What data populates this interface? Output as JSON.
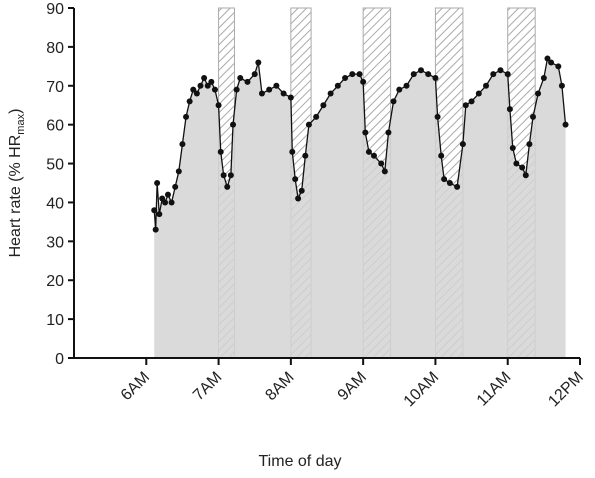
{
  "chart_data": {
    "type": "line",
    "xlabel": "Time of day",
    "ylabel": [
      "Heart rate (% HR",
      "max",
      ")"
    ],
    "xlim": [
      5,
      12
    ],
    "xticks": [
      {
        "value": 6,
        "label": "6AM"
      },
      {
        "value": 7,
        "label": "7AM"
      },
      {
        "value": 8,
        "label": "8AM"
      },
      {
        "value": 9,
        "label": "9AM"
      },
      {
        "value": 10,
        "label": "10AM"
      },
      {
        "value": 11,
        "label": "11AM"
      },
      {
        "value": 12,
        "label": "12PM"
      }
    ],
    "ylim": [
      0,
      90
    ],
    "yticks": [
      0,
      10,
      20,
      30,
      40,
      50,
      60,
      70,
      80,
      90
    ],
    "rest_periods": [
      [
        7,
        7.22
      ],
      [
        8,
        8.28
      ],
      [
        9,
        9.38
      ],
      [
        10,
        10.38
      ],
      [
        11,
        11.38
      ]
    ],
    "color": "#111111",
    "area_color": "#d3d3d3",
    "x": [
      6.11,
      6.13,
      6.15,
      6.18,
      6.22,
      6.26,
      6.3,
      6.35,
      6.4,
      6.45,
      6.5,
      6.55,
      6.6,
      6.65,
      6.7,
      6.75,
      6.8,
      6.85,
      6.9,
      6.95,
      7.0,
      7.03,
      7.07,
      7.12,
      7.17,
      7.2,
      7.25,
      7.3,
      7.4,
      7.5,
      7.55,
      7.6,
      7.7,
      7.8,
      7.9,
      8.0,
      8.02,
      8.06,
      8.1,
      8.15,
      8.2,
      8.25,
      8.35,
      8.45,
      8.55,
      8.65,
      8.75,
      8.85,
      8.95,
      9.0,
      9.03,
      9.08,
      9.15,
      9.25,
      9.3,
      9.35,
      9.42,
      9.5,
      9.6,
      9.7,
      9.8,
      9.9,
      10.0,
      10.03,
      10.08,
      10.12,
      10.2,
      10.3,
      10.38,
      10.42,
      10.5,
      10.6,
      10.7,
      10.8,
      10.9,
      11.0,
      11.03,
      11.07,
      11.12,
      11.2,
      11.25,
      11.3,
      11.35,
      11.42,
      11.5,
      11.55,
      11.6,
      11.7,
      11.75,
      11.8
    ],
    "values": [
      38,
      33,
      45,
      37,
      41,
      40,
      42,
      40,
      44,
      48,
      55,
      62,
      66,
      69,
      68,
      70,
      72,
      70,
      71,
      69,
      65,
      53,
      47,
      44,
      47,
      60,
      69,
      72,
      71,
      73,
      76,
      68,
      69,
      70,
      68,
      67,
      53,
      46,
      41,
      43,
      52,
      60,
      62,
      65,
      68,
      70,
      72,
      73,
      73,
      71,
      58,
      53,
      52,
      50,
      48,
      58,
      66,
      69,
      70,
      73,
      74,
      73,
      72,
      62,
      52,
      46,
      45,
      44,
      55,
      65,
      66,
      68,
      70,
      73,
      74,
      73,
      64,
      54,
      50,
      49,
      47,
      55,
      62,
      68,
      72,
      77,
      76,
      75,
      70,
      60
    ]
  }
}
